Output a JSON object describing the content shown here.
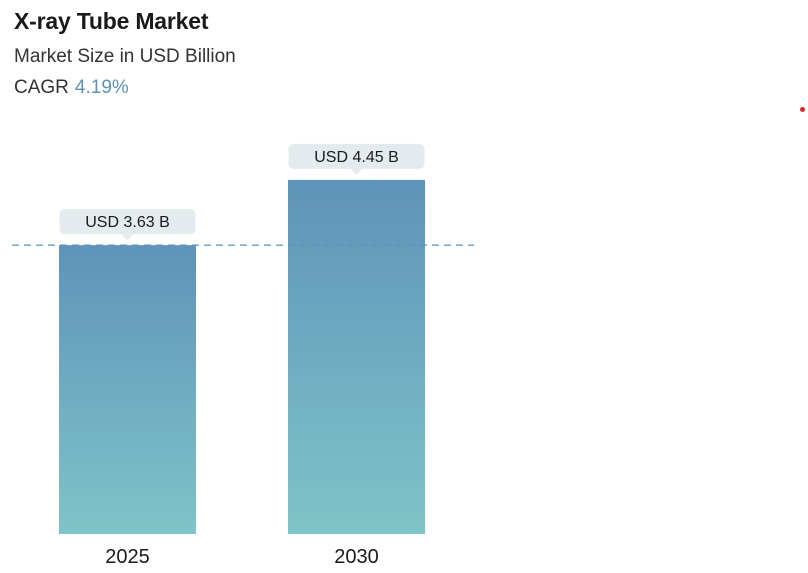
{
  "header": {
    "title": "X-ray Tube Market",
    "subtitle": "Market Size in USD Billion",
    "cagr_label": "CAGR",
    "cagr_value": "4.19%"
  },
  "colors": {
    "accent": "#5b92b8",
    "bar_top": "#5f93b9",
    "bar_bottom": "#7fc4c8",
    "label_bg": "#e3ebee",
    "reference_line": "#5b92b8",
    "marker": "#d62828"
  },
  "chart_data": {
    "type": "bar",
    "title": "X-ray Tube Market",
    "subtitle": "Market Size in USD Billion",
    "categories": [
      "2025",
      "2030"
    ],
    "values": [
      3.63,
      4.45
    ],
    "data_labels": [
      "USD 3.63 B",
      "USD 4.45 B"
    ],
    "ylim": [
      0,
      4.7
    ],
    "reference_line_value": 3.63,
    "grid": false,
    "legend": "none",
    "xlabel": "",
    "ylabel": ""
  }
}
